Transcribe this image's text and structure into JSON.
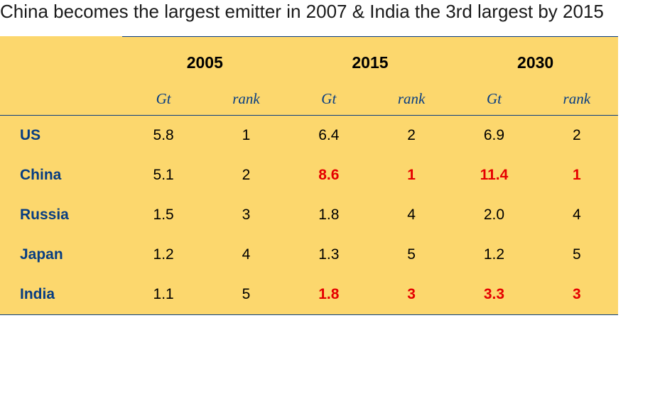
{
  "title": "China becomes the largest emitter in 2007 & India the 3rd largest by 2015",
  "table": {
    "type": "table",
    "background_color": "#fcd76d",
    "border_color": "#073d82",
    "row_label_color": "#073d82",
    "highlight_color": "#e50000",
    "years": [
      "2005",
      "2015",
      "2030"
    ],
    "sub_columns": [
      "Gt",
      "rank"
    ],
    "countries": [
      "US",
      "China",
      "Russia",
      "Japan",
      "India"
    ],
    "rows": [
      {
        "label": "US",
        "cells": [
          {
            "v": "5.8",
            "hl": false
          },
          {
            "v": "1",
            "hl": false
          },
          {
            "v": "6.4",
            "hl": false
          },
          {
            "v": "2",
            "hl": false
          },
          {
            "v": "6.9",
            "hl": false
          },
          {
            "v": "2",
            "hl": false
          }
        ]
      },
      {
        "label": "China",
        "cells": [
          {
            "v": "5.1",
            "hl": false
          },
          {
            "v": "2",
            "hl": false
          },
          {
            "v": "8.6",
            "hl": true
          },
          {
            "v": "1",
            "hl": true
          },
          {
            "v": "11.4",
            "hl": true
          },
          {
            "v": "1",
            "hl": true
          }
        ]
      },
      {
        "label": "Russia",
        "cells": [
          {
            "v": "1.5",
            "hl": false
          },
          {
            "v": "3",
            "hl": false
          },
          {
            "v": "1.8",
            "hl": false
          },
          {
            "v": "4",
            "hl": false
          },
          {
            "v": "2.0",
            "hl": false
          },
          {
            "v": "4",
            "hl": false
          }
        ]
      },
      {
        "label": "Japan",
        "cells": [
          {
            "v": "1.2",
            "hl": false
          },
          {
            "v": "4",
            "hl": false
          },
          {
            "v": "1.3",
            "hl": false
          },
          {
            "v": "5",
            "hl": false
          },
          {
            "v": "1.2",
            "hl": false
          },
          {
            "v": "5",
            "hl": false
          }
        ]
      },
      {
        "label": "India",
        "cells": [
          {
            "v": "1.1",
            "hl": false
          },
          {
            "v": "5",
            "hl": false
          },
          {
            "v": "1.8",
            "hl": true
          },
          {
            "v": "3",
            "hl": true
          },
          {
            "v": "3.3",
            "hl": true
          },
          {
            "v": "3",
            "hl": true
          }
        ]
      }
    ]
  }
}
